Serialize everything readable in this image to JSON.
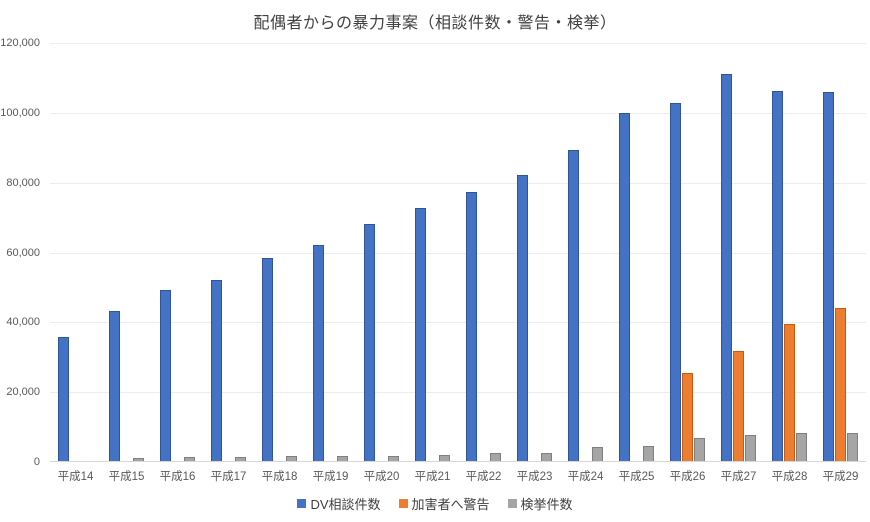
{
  "chart_data": {
    "type": "bar",
    "title": "配偶者からの暴力事案（相談件数・警告・検挙）",
    "categories": [
      "平成14",
      "平成15",
      "平成16",
      "平成17",
      "平成18",
      "平成19",
      "平成20",
      "平成21",
      "平成22",
      "平成23",
      "平成24",
      "平成25",
      "平成26",
      "平成27",
      "平成28",
      "平成29"
    ],
    "series": [
      {
        "key": "dv-consultations",
        "name": "DV相談件数",
        "color": "#4472C4",
        "border_color": "#2F5597",
        "values": [
          35943,
          43225,
          49329,
          52145,
          58528,
          62078,
          68196,
          72792,
          77334,
          82099,
          89490,
          99961,
          102963,
          111172,
          106367,
          106110
        ]
      },
      {
        "key": "warnings-to-offenders",
        "name": "加害者へ警告",
        "color": "#ED7D31",
        "border_color": "#C55A11",
        "values": [
          0,
          0,
          0,
          0,
          0,
          0,
          0,
          0,
          0,
          0,
          0,
          0,
          25600,
          31700,
          39600,
          44100
        ]
      },
      {
        "key": "arrests",
        "name": "検挙件数",
        "color": "#A5A5A5",
        "border_color": "#7F7F7F",
        "values": [
          0,
          1250,
          1350,
          1450,
          1650,
          1650,
          1800,
          2100,
          2450,
          2700,
          4300,
          4600,
          6900,
          7700,
          8300,
          8400
        ]
      }
    ],
    "ylim": [
      0,
      120000
    ],
    "ytick_step": 20000,
    "ytick_labels": [
      "0",
      "20,000",
      "40,000",
      "60,000",
      "80,000",
      "100,000",
      "120,000"
    ],
    "grid": true,
    "legend_position": "bottom"
  },
  "styles": {
    "background": "#FFFFFF",
    "grid_color": "#EDEDED",
    "axis_line_color": "#D6D6D6",
    "tick_label_color": "#595959",
    "title_color": "#404040"
  }
}
